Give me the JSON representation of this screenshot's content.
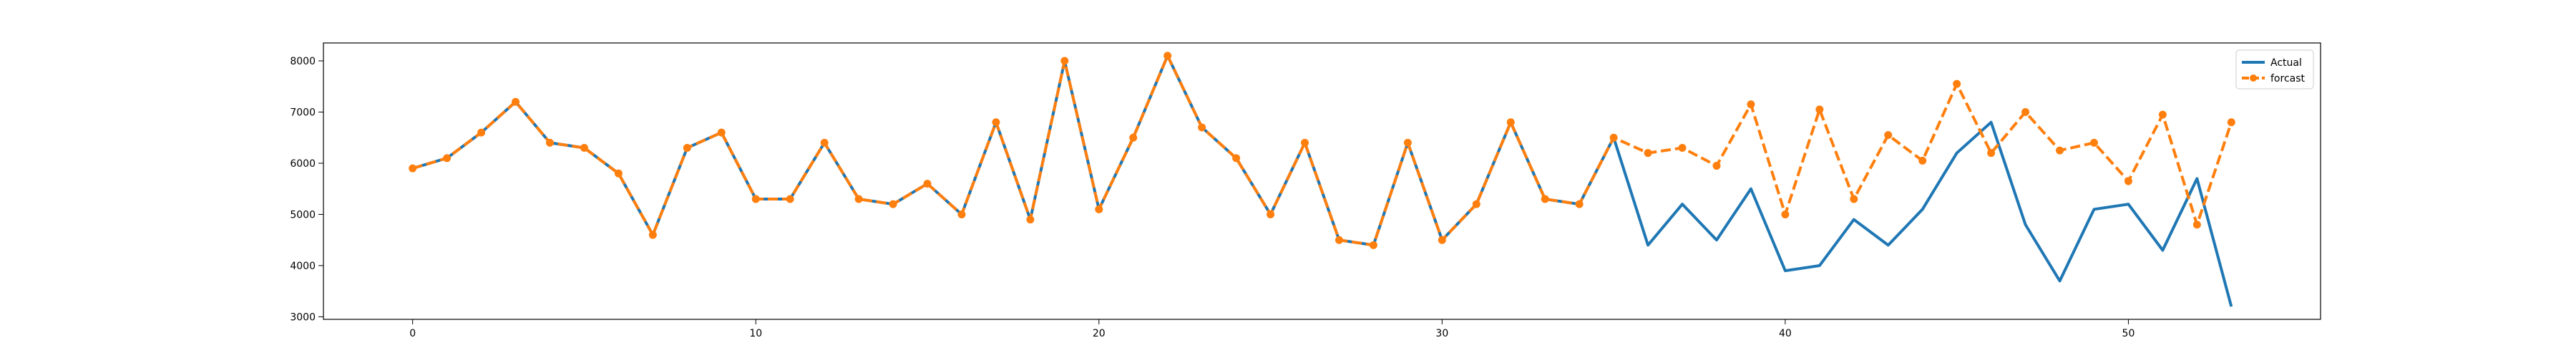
{
  "chart_data": {
    "type": "line",
    "title": "",
    "xlabel": "",
    "ylabel": "",
    "xlim": [
      -2.6,
      55.6
    ],
    "ylim": [
      2950,
      8350
    ],
    "x_ticks": [
      0,
      10,
      20,
      30,
      40,
      50
    ],
    "y_ticks": [
      3000,
      4000,
      5000,
      6000,
      7000,
      8000
    ],
    "x_tick_labels": [
      "0",
      "10",
      "20",
      "30",
      "40",
      "50"
    ],
    "y_tick_labels": [
      "3000",
      "4000",
      "5000",
      "6000",
      "7000",
      "8000"
    ],
    "grid": false,
    "legend_position": "top-right",
    "series": [
      {
        "name": "Actual",
        "color": "#1f77b4",
        "line_style": "solid",
        "marker": "none",
        "x": [
          0,
          1,
          2,
          3,
          4,
          5,
          6,
          7,
          8,
          9,
          10,
          11,
          12,
          13,
          14,
          15,
          16,
          17,
          18,
          19,
          20,
          21,
          22,
          23,
          24,
          25,
          26,
          27,
          28,
          29,
          30,
          31,
          32,
          33,
          34,
          35,
          36,
          37,
          38,
          39,
          40,
          41,
          42,
          43,
          44,
          45,
          46,
          47,
          48,
          49,
          50,
          51,
          52,
          53
        ],
        "values": [
          5900,
          6100,
          6600,
          7200,
          6400,
          6300,
          5800,
          4600,
          6300,
          6600,
          5300,
          5300,
          6400,
          5300,
          5200,
          5600,
          5000,
          6800,
          4900,
          8000,
          5100,
          6500,
          8100,
          6700,
          6100,
          5000,
          6400,
          4500,
          4400,
          6400,
          4500,
          5200,
          6800,
          5300,
          5200,
          6500,
          4400,
          5200,
          4500,
          5500,
          3900,
          4000,
          4900,
          4400,
          5100,
          6200,
          6800,
          4800,
          3700,
          5100,
          5200,
          4300,
          5700,
          3200
        ]
      },
      {
        "name": "forcast",
        "color": "#ff7f0e",
        "line_style": "dashed",
        "marker": "circle",
        "x": [
          0,
          1,
          2,
          3,
          4,
          5,
          6,
          7,
          8,
          9,
          10,
          11,
          12,
          13,
          14,
          15,
          16,
          17,
          18,
          19,
          20,
          21,
          22,
          23,
          24,
          25,
          26,
          27,
          28,
          29,
          30,
          31,
          32,
          33,
          34,
          35,
          36,
          37,
          38,
          39,
          40,
          41,
          42,
          43,
          44,
          45,
          46,
          47,
          48,
          49,
          50,
          51,
          52,
          53
        ],
        "values": [
          5900,
          6100,
          6600,
          7200,
          6400,
          6300,
          5800,
          4600,
          6300,
          6600,
          5300,
          5300,
          6400,
          5300,
          5200,
          5600,
          5000,
          6800,
          4900,
          8000,
          5100,
          6500,
          8100,
          6700,
          6100,
          5000,
          6400,
          4500,
          4400,
          6400,
          4500,
          5200,
          6800,
          5300,
          5200,
          6500,
          6200,
          6300,
          5950,
          7150,
          5000,
          7050,
          5300,
          6550,
          6050,
          7550,
          6200,
          7000,
          6250,
          6400,
          5650,
          6950,
          4800,
          6800
        ]
      }
    ]
  }
}
